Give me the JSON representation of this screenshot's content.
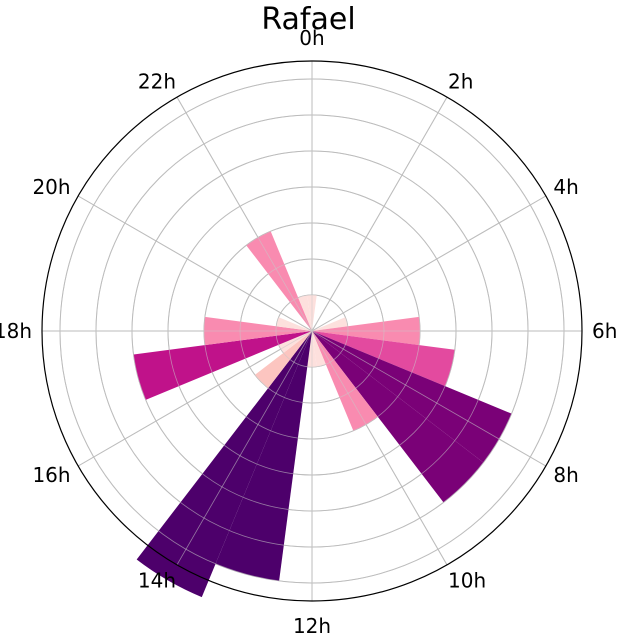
{
  "chart_data": {
    "type": "polar-bar",
    "title": "Rafael",
    "direction": "clockwise",
    "zero_location": "top",
    "angular_tick_labels": [
      "0h",
      "2h",
      "4h",
      "6h",
      "8h",
      "10h",
      "12h",
      "14h",
      "16h",
      "18h",
      "20h",
      "22h"
    ],
    "radial_max": 7.5,
    "radial_gridlines": [
      1,
      2,
      3,
      4,
      5,
      6,
      7
    ],
    "grid": true,
    "colormap": "RdPu",
    "bars": [
      {
        "hour": 0,
        "value": 1
      },
      {
        "hour": 1,
        "value": 0
      },
      {
        "hour": 2,
        "value": 0
      },
      {
        "hour": 3,
        "value": 0
      },
      {
        "hour": 4,
        "value": 0
      },
      {
        "hour": 5,
        "value": 1
      },
      {
        "hour": 6,
        "value": 3
      },
      {
        "hour": 7,
        "value": 4
      },
      {
        "hour": 8,
        "value": 6
      },
      {
        "hour": 9,
        "value": 6
      },
      {
        "hour": 10,
        "value": 3
      },
      {
        "hour": 11,
        "value": 1
      },
      {
        "hour": 12,
        "value": 1
      },
      {
        "hour": 13,
        "value": 7
      },
      {
        "hour": 14,
        "value": 8
      },
      {
        "hour": 15,
        "value": 2
      },
      {
        "hour": 16,
        "value": 1
      },
      {
        "hour": 17,
        "value": 5
      },
      {
        "hour": 18,
        "value": 3
      },
      {
        "hour": 19,
        "value": 1
      },
      {
        "hour": 20,
        "value": 0
      },
      {
        "hour": 21,
        "value": 0
      },
      {
        "hour": 22,
        "value": 3
      },
      {
        "hour": 23,
        "value": 1
      }
    ],
    "bar_colors": {
      "1": "#fde0dd",
      "2": "#fcc5c0",
      "3": "#f98bb0",
      "4": "#e34a9f",
      "5": "#c0128a",
      "6": "#7a0177",
      "7": "#4d006b",
      "8": "#4d006b"
    }
  }
}
